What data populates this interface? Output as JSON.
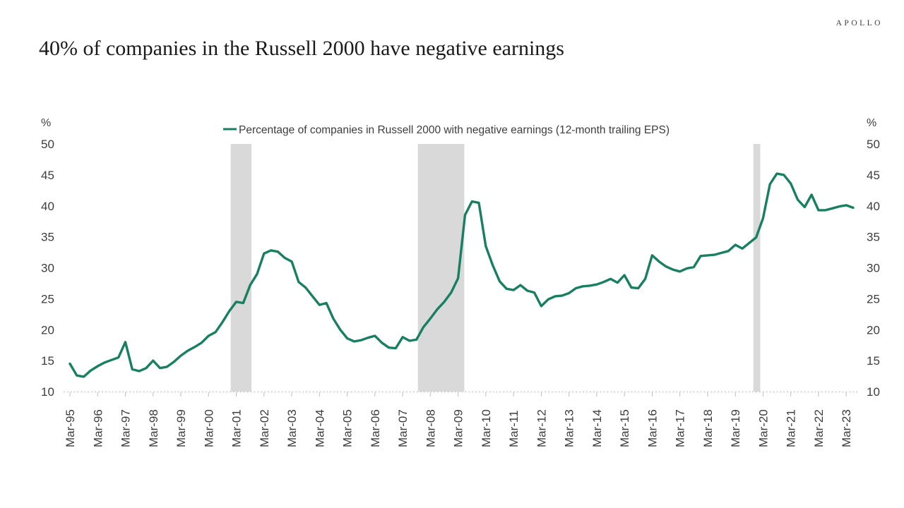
{
  "logo": "APOLLO",
  "title": "40% of companies in the Russell 2000 have negative earnings",
  "chart_data": {
    "type": "line",
    "legend": [
      "Percentage of companies in Russell 2000 with negative earnings (12-month trailing EPS)"
    ],
    "unit_label": "%",
    "ylabel": "%",
    "ylim": [
      10,
      50
    ],
    "yticks": [
      10,
      15,
      20,
      25,
      30,
      35,
      40,
      45,
      50
    ],
    "grid": false,
    "legend_position": "top-center",
    "dual_axis": true,
    "x_tick_every": 4,
    "categories": [
      "Mar-95",
      "Jun-95",
      "Sep-95",
      "Dec-95",
      "Mar-96",
      "Jun-96",
      "Sep-96",
      "Dec-96",
      "Mar-97",
      "Jun-97",
      "Sep-97",
      "Dec-97",
      "Mar-98",
      "Jun-98",
      "Sep-98",
      "Dec-98",
      "Mar-99",
      "Jun-99",
      "Sep-99",
      "Dec-99",
      "Mar-00",
      "Jun-00",
      "Sep-00",
      "Dec-00",
      "Mar-01",
      "Jun-01",
      "Sep-01",
      "Dec-01",
      "Mar-02",
      "Jun-02",
      "Sep-02",
      "Dec-02",
      "Mar-03",
      "Jun-03",
      "Sep-03",
      "Dec-03",
      "Mar-04",
      "Jun-04",
      "Sep-04",
      "Dec-04",
      "Mar-05",
      "Jun-05",
      "Sep-05",
      "Dec-05",
      "Mar-06",
      "Jun-06",
      "Sep-06",
      "Dec-06",
      "Mar-07",
      "Jun-07",
      "Sep-07",
      "Dec-07",
      "Mar-08",
      "Jun-08",
      "Sep-08",
      "Dec-08",
      "Mar-09",
      "Jun-09",
      "Sep-09",
      "Dec-09",
      "Mar-10",
      "Jun-10",
      "Sep-10",
      "Dec-10",
      "Mar-11",
      "Jun-11",
      "Sep-11",
      "Dec-11",
      "Mar-12",
      "Jun-12",
      "Sep-12",
      "Dec-12",
      "Mar-13",
      "Jun-13",
      "Sep-13",
      "Dec-13",
      "Mar-14",
      "Jun-14",
      "Sep-14",
      "Dec-14",
      "Mar-15",
      "Jun-15",
      "Sep-15",
      "Dec-15",
      "Mar-16",
      "Jun-16",
      "Sep-16",
      "Dec-16",
      "Mar-17",
      "Jun-17",
      "Sep-17",
      "Dec-17",
      "Mar-18",
      "Jun-18",
      "Sep-18",
      "Dec-18",
      "Mar-19",
      "Jun-19",
      "Sep-19",
      "Dec-19",
      "Mar-20",
      "Jun-20",
      "Sep-20",
      "Dec-20",
      "Mar-21",
      "Jun-21",
      "Sep-21",
      "Dec-21",
      "Mar-22",
      "Jun-22",
      "Sep-22",
      "Dec-22",
      "Mar-23",
      "Jun-23"
    ],
    "values": [
      14.5,
      12.6,
      12.4,
      13.4,
      14.1,
      14.7,
      15.1,
      15.5,
      18.0,
      13.6,
      13.3,
      13.8,
      15.0,
      13.8,
      14.0,
      14.8,
      15.8,
      16.6,
      17.2,
      17.9,
      19.0,
      19.6,
      21.2,
      23.0,
      24.5,
      24.3,
      27.2,
      29.0,
      32.3,
      32.8,
      32.6,
      31.6,
      31.0,
      27.7,
      26.8,
      25.4,
      24.0,
      24.3,
      21.8,
      20.0,
      18.6,
      18.1,
      18.3,
      18.7,
      19.0,
      17.9,
      17.1,
      17.0,
      18.8,
      18.2,
      18.4,
      20.4,
      21.8,
      23.3,
      24.5,
      26.0,
      28.3,
      38.5,
      40.7,
      40.5,
      33.5,
      30.4,
      27.8,
      26.6,
      26.4,
      27.2,
      26.3,
      26.0,
      23.8,
      24.9,
      25.4,
      25.5,
      25.9,
      26.7,
      27.0,
      27.1,
      27.3,
      27.7,
      28.2,
      27.6,
      28.8,
      26.8,
      26.7,
      28.2,
      32.0,
      31.0,
      30.2,
      29.7,
      29.4,
      29.9,
      30.1,
      31.9,
      32.0,
      32.1,
      32.4,
      32.7,
      33.7,
      33.1,
      34.0,
      34.9,
      38.0,
      43.5,
      45.2,
      45.0,
      43.6,
      41.0,
      39.8,
      41.8,
      39.3,
      39.3,
      39.6,
      39.9,
      40.1,
      39.7
    ],
    "recession_bands": [
      [
        23.2,
        26.2
      ],
      [
        50.2,
        56.9
      ],
      [
        98.6,
        99.6
      ]
    ],
    "line_color": "#188060",
    "band_color": "#d9d9d9",
    "axis_color": "#c9c9c9",
    "tick_color": "#bfbfbf",
    "label_color": "#3d3d3d"
  }
}
